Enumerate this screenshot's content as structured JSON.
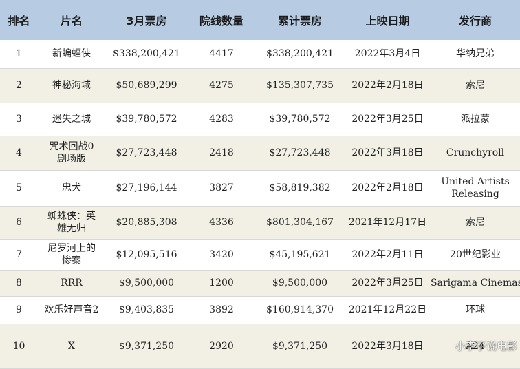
{
  "table": {
    "headers": [
      "排名",
      "片名",
      "3月票房",
      "院线数量",
      "累计票房",
      "上映日期",
      "发行商"
    ],
    "rows": [
      [
        "1",
        "新蝙蝠侠",
        "$338,200,421",
        "4417",
        "$338,200,421",
        "2022年3月4日",
        "华纳兄弟"
      ],
      [
        "2",
        "神秘海域",
        "$50,689,299",
        "4275",
        "$135,307,735",
        "2022年2月18日",
        "索尼"
      ],
      [
        "3",
        "迷失之城",
        "$39,780,572",
        "4283",
        "$39,780,572",
        "2022年3月25日",
        "派拉蒙"
      ],
      [
        "4",
        "咒术回战0 剧场版",
        "$27,723,448",
        "2418",
        "$27,723,448",
        "2022年3月18日",
        "Crunchyroll"
      ],
      [
        "5",
        "忠犬",
        "$27,196,144",
        "3827",
        "$58,819,382",
        "2022年2月18日",
        "United Artists Releasing"
      ],
      [
        "6",
        "蜘蛛侠：英雄无归",
        "$20,885,308",
        "4336",
        "$801,304,167",
        "2021年12月17日",
        "索尼"
      ],
      [
        "7",
        "尼罗河上的惨案",
        "$12,095,516",
        "3420",
        "$45,195,621",
        "2022年2月11日",
        "20世纪影业"
      ],
      [
        "8",
        "RRR",
        "$9,500,000",
        "1200",
        "$9,500,000",
        "2022年3月25日",
        "Sarigama Cinemas"
      ],
      [
        "9",
        "欢乐好声音2",
        "$9,403,835",
        "3892",
        "$160,914,370",
        "2021年12月22日",
        "环球"
      ],
      [
        "10",
        "X",
        "$9,371,250",
        "2920",
        "$9,371,250",
        "2022年3月18日",
        "A24"
      ]
    ]
  },
  "watermark": "小李子说电影",
  "colors": {
    "header_bg": "#b7cbe3",
    "row_alt_bg": "#f2f0e4"
  }
}
